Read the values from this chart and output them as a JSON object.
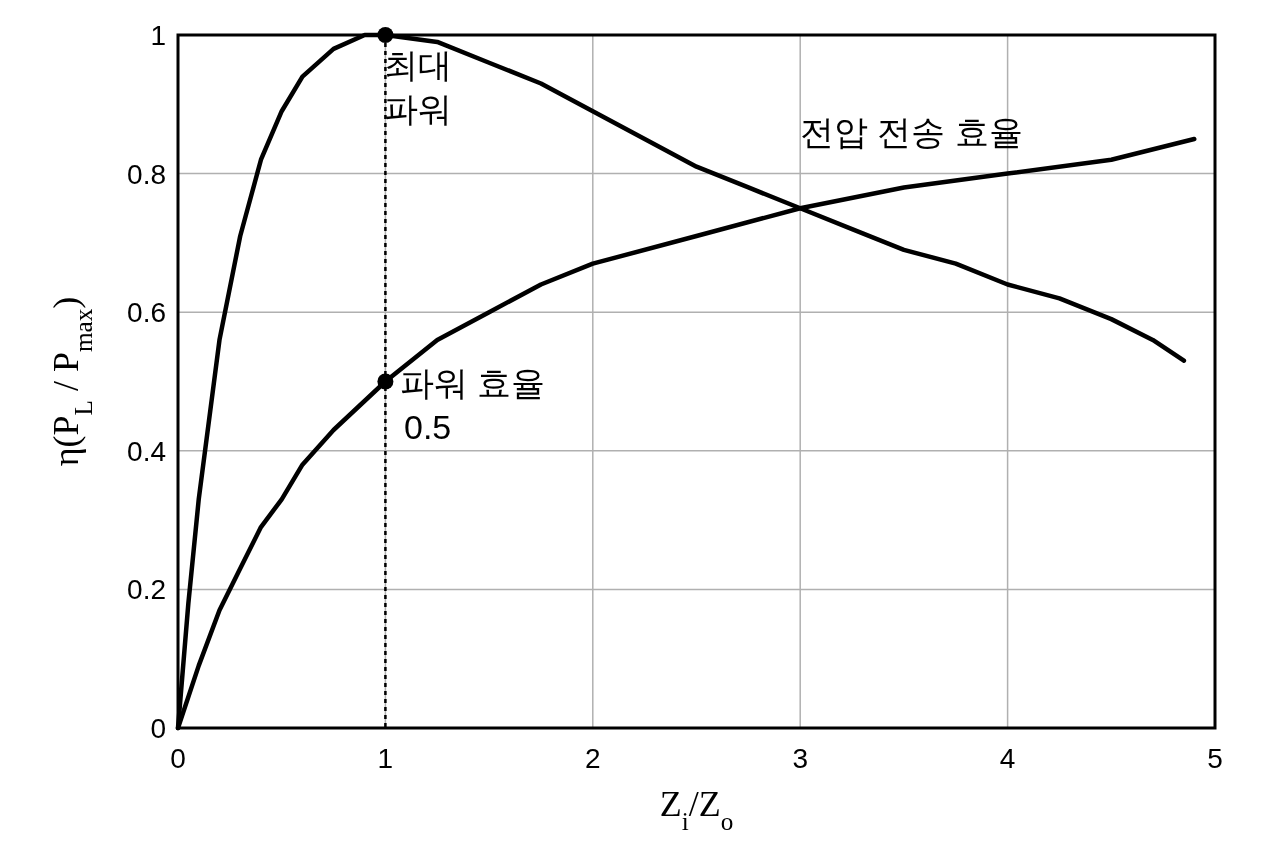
{
  "chart_data": {
    "type": "line",
    "xlabel": "Z$_{i}$/Z$_{o}$",
    "ylabel": "η(P$_{L}$ / P$_{max}$)",
    "xlim": [
      0,
      5
    ],
    "ylim": [
      0,
      1
    ],
    "xticks": [
      0,
      1,
      2,
      3,
      4,
      5
    ],
    "yticks": [
      0,
      0.2,
      0.4,
      0.6,
      0.8,
      1
    ],
    "grid": true,
    "series": [
      {
        "color": "#000000",
        "x": [
          0,
          0.05,
          0.1,
          0.2,
          0.3,
          0.4,
          0.5,
          0.6,
          0.75,
          0.9,
          1,
          1.25,
          1.5,
          1.75,
          2,
          2.25,
          2.5,
          2.75,
          3,
          3.25,
          3.5,
          3.75,
          4,
          4.25,
          4.5,
          4.7,
          4.85
        ],
        "values": [
          0,
          0.18,
          0.33,
          0.56,
          0.71,
          0.82,
          0.89,
          0.94,
          0.98,
          1,
          1,
          0.99,
          0.96,
          0.93,
          0.89,
          0.85,
          0.81,
          0.78,
          0.75,
          0.72,
          0.69,
          0.67,
          0.64,
          0.62,
          0.59,
          0.56,
          0.53
        ]
      },
      {
        "color": "#000000",
        "x": [
          0,
          0.1,
          0.2,
          0.3,
          0.4,
          0.5,
          0.6,
          0.75,
          1,
          1.25,
          1.5,
          1.75,
          2,
          2.5,
          3,
          3.5,
          4,
          4.5,
          4.9
        ],
        "values": [
          0,
          0.09,
          0.17,
          0.23,
          0.29,
          0.33,
          0.38,
          0.43,
          0.5,
          0.56,
          0.6,
          0.64,
          0.67,
          0.71,
          0.75,
          0.78,
          0.8,
          0.82,
          0.85
        ]
      },
      {
        "type": "scatter",
        "color": "#000000",
        "x": [
          1,
          1
        ],
        "values": [
          1,
          0.5
        ]
      }
    ],
    "ref_lines": [
      {
        "axis": "x",
        "value": 1,
        "color": "#000000",
        "line_style": "dotted"
      }
    ],
    "annotations": [
      "최대\n파워",
      "파워  효율\n0.5",
      "전압  전송  효율"
    ]
  }
}
